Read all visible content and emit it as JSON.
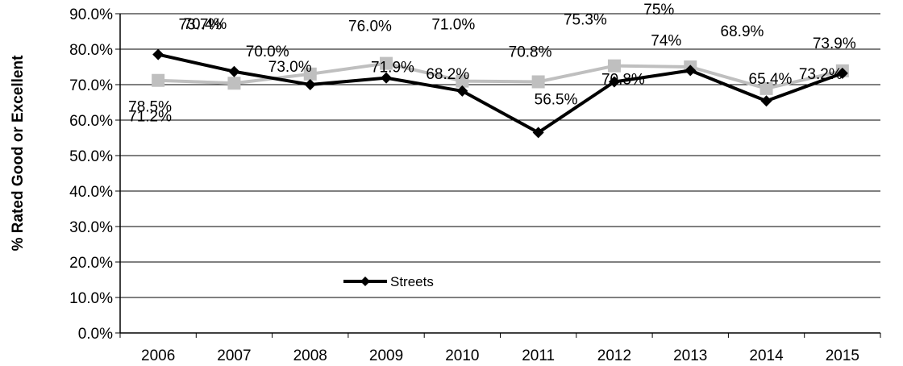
{
  "chart_data": {
    "type": "line",
    "categories": [
      "2006",
      "2007",
      "2008",
      "2009",
      "2010",
      "2011",
      "2012",
      "2013",
      "2014",
      "2015"
    ],
    "series": [
      {
        "name": "Streets",
        "color": "#000000",
        "marker": "diamond",
        "values": [
          78.5,
          73.7,
          70.0,
          71.9,
          68.2,
          56.5,
          70.8,
          74.0,
          65.4,
          73.2
        ],
        "labels": [
          "78.5%",
          "73.7%",
          "70.0%",
          "71.9%",
          "68.2%",
          "56.5%",
          "70.8%",
          "74%",
          "65.4%",
          "73.2%"
        ]
      },
      {
        "color": "#bfbfbf",
        "marker": "square",
        "values": [
          71.2,
          70.4,
          73.0,
          76.0,
          71.0,
          70.8,
          75.3,
          75.0,
          68.9,
          73.9
        ],
        "labels": [
          "71.2%",
          "70.4%",
          "73.0%",
          "76.0%",
          "71.0%",
          "70.8%",
          "75.3%",
          "75%",
          "68.9%",
          "73.9%"
        ]
      }
    ],
    "y_ticks": [
      "0.0%",
      "10.0%",
      "20.0%",
      "30.0%",
      "40.0%",
      "50.0%",
      "60.0%",
      "70.0%",
      "80.0%",
      "90.0%"
    ],
    "ylim": [
      0,
      90
    ],
    "ylabel": "% Rated Good or Excellent",
    "xlabel": "",
    "title": "",
    "grid": true,
    "legend_position": "bottom-left-inside"
  }
}
